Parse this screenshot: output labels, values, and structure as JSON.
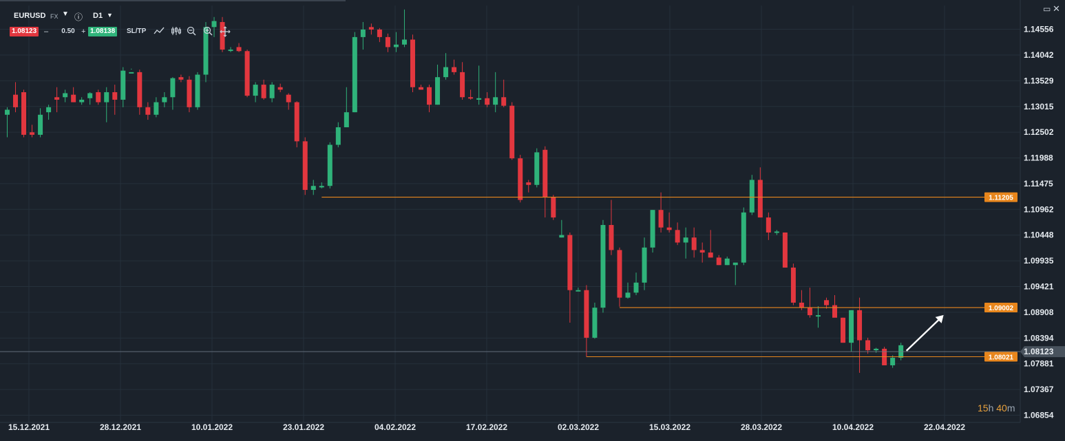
{
  "toolbar": {
    "symbol": "EURUSD",
    "market": "FX",
    "timeframe": "D1",
    "bid": "1.08123",
    "spread": "0.50",
    "ask": "1.08138",
    "sltp_label": "SL/TP",
    "minus": "–",
    "plus": "+"
  },
  "countdown": {
    "hours": "15",
    "h": "h",
    "minutes": "40",
    "m": "m"
  },
  "colors": {
    "bull": "#2fb37a",
    "bear": "#e2373f",
    "background": "#1b222b",
    "level": "#e8861c",
    "grid": "#25303b"
  },
  "chart_data": {
    "type": "candlestick",
    "symbol": "EURUSD",
    "timeframe": "D1",
    "yaxis_ticks": [
      "1.14556",
      "1.14042",
      "1.13529",
      "1.13015",
      "1.12502",
      "1.11988",
      "1.11475",
      "1.10962",
      "1.10448",
      "1.09935",
      "1.09421",
      "1.08908",
      "1.08394",
      "1.07881",
      "1.07367",
      "1.06854"
    ],
    "ylim": [
      1.0671,
      1.1503
    ],
    "xaxis_ticks": [
      "15.12.2021",
      "28.12.2021",
      "10.01.2022",
      "23.01.2022",
      "04.02.2022",
      "17.02.2022",
      "02.03.2022",
      "15.03.2022",
      "28.03.2022",
      "10.04.2022",
      "22.04.2022"
    ],
    "current_price": "1.08123",
    "levels": [
      {
        "label": "1.11205",
        "value": 1.11205,
        "start_index": 38
      },
      {
        "label": "1.09002",
        "value": 1.09002,
        "start_index": 74
      },
      {
        "label": "1.08021",
        "value": 1.08021,
        "start_index": 70
      }
    ],
    "annotations": [
      {
        "type": "arrow",
        "direction": "up-right",
        "from_index": 108
      }
    ],
    "candles": [
      [
        1.1285,
        1.13,
        1.124,
        1.1295
      ],
      [
        1.1325,
        1.135,
        1.129,
        1.13
      ],
      [
        1.133,
        1.1335,
        1.124,
        1.1245
      ],
      [
        1.125,
        1.1265,
        1.124,
        1.1245
      ],
      [
        1.1245,
        1.1298,
        1.124,
        1.1285
      ],
      [
        1.129,
        1.1305,
        1.1275,
        1.13
      ],
      [
        1.132,
        1.134,
        1.129,
        1.1315
      ],
      [
        1.132,
        1.1335,
        1.131,
        1.1328
      ],
      [
        1.1325,
        1.134,
        1.131,
        1.131
      ],
      [
        1.131,
        1.132,
        1.1305,
        1.1315
      ],
      [
        1.1318,
        1.133,
        1.1305,
        1.1328
      ],
      [
        1.133,
        1.1335,
        1.1305,
        1.131
      ],
      [
        1.131,
        1.134,
        1.127,
        1.133
      ],
      [
        1.133,
        1.1345,
        1.1285,
        1.1315
      ],
      [
        1.1315,
        1.138,
        1.13,
        1.1373
      ],
      [
        1.137,
        1.1377,
        1.1375,
        1.137
      ],
      [
        1.137,
        1.1375,
        1.1285,
        1.13
      ],
      [
        1.13,
        1.131,
        1.1275,
        1.1285
      ],
      [
        1.1285,
        1.132,
        1.128,
        1.131
      ],
      [
        1.131,
        1.133,
        1.13,
        1.132
      ],
      [
        1.132,
        1.136,
        1.1295,
        1.1358
      ],
      [
        1.136,
        1.1365,
        1.135,
        1.1355
      ],
      [
        1.1355,
        1.1362,
        1.129,
        1.13
      ],
      [
        1.13,
        1.137,
        1.1295,
        1.1365
      ],
      [
        1.1365,
        1.147,
        1.135,
        1.146
      ],
      [
        1.146,
        1.148,
        1.144,
        1.1472
      ],
      [
        1.147,
        1.148,
        1.141,
        1.1415
      ],
      [
        1.1415,
        1.142,
        1.141,
        1.1415
      ],
      [
        1.142,
        1.1428,
        1.141,
        1.1412
      ],
      [
        1.1412,
        1.1415,
        1.132,
        1.1323
      ],
      [
        1.1323,
        1.135,
        1.131,
        1.1345
      ],
      [
        1.1345,
        1.1355,
        1.1315,
        1.1318
      ],
      [
        1.1318,
        1.135,
        1.131,
        1.1345
      ],
      [
        1.134,
        1.1347,
        1.133,
        1.1335
      ],
      [
        1.1325,
        1.1328,
        1.1295,
        1.131
      ],
      [
        1.131,
        1.1312,
        1.122,
        1.1232
      ],
      [
        1.1232,
        1.124,
        1.1125,
        1.1135
      ],
      [
        1.1135,
        1.1155,
        1.1125,
        1.1143
      ],
      [
        1.114,
        1.115,
        1.1138,
        1.1143
      ],
      [
        1.1143,
        1.123,
        1.1138,
        1.1225
      ],
      [
        1.1225,
        1.127,
        1.122,
        1.126
      ],
      [
        1.126,
        1.134,
        1.126,
        1.129
      ],
      [
        1.129,
        1.145,
        1.129,
        1.144
      ],
      [
        1.144,
        1.147,
        1.1415,
        1.1455
      ],
      [
        1.146,
        1.1467,
        1.1445,
        1.1455
      ],
      [
        1.1455,
        1.1458,
        1.143,
        1.144
      ],
      [
        1.144,
        1.1447,
        1.141,
        1.142
      ],
      [
        1.142,
        1.145,
        1.141,
        1.1425
      ],
      [
        1.1425,
        1.1495,
        1.142,
        1.1435
      ],
      [
        1.1435,
        1.1445,
        1.133,
        1.134
      ],
      [
        1.134,
        1.1345,
        1.1335,
        1.1335
      ],
      [
        1.134,
        1.1345,
        1.129,
        1.1305
      ],
      [
        1.1305,
        1.1385,
        1.1305,
        1.136
      ],
      [
        1.136,
        1.1408,
        1.1355,
        1.138
      ],
      [
        1.138,
        1.1395,
        1.1365,
        1.137
      ],
      [
        1.137,
        1.139,
        1.1315,
        1.132
      ],
      [
        1.132,
        1.1335,
        1.1315,
        1.1318
      ],
      [
        1.1315,
        1.1383,
        1.1305,
        1.1318
      ],
      [
        1.1318,
        1.133,
        1.13,
        1.1305
      ],
      [
        1.1305,
        1.137,
        1.129,
        1.132
      ],
      [
        1.132,
        1.1355,
        1.13,
        1.1303
      ],
      [
        1.1303,
        1.131,
        1.1195,
        1.1198
      ],
      [
        1.1198,
        1.1205,
        1.111,
        1.1115
      ],
      [
        1.115,
        1.1155,
        1.113,
        1.1145
      ],
      [
        1.1145,
        1.1218,
        1.114,
        1.121
      ],
      [
        1.1215,
        1.1222,
        1.108,
        1.112
      ],
      [
        1.112,
        1.1125,
        1.1075,
        1.108
      ],
      [
        1.104,
        1.1075,
        1.104,
        1.1045
      ],
      [
        1.1045,
        1.105,
        1.087,
        1.0935
      ],
      [
        1.0935,
        1.094,
        1.0935,
        1.0935
      ],
      [
        1.0935,
        1.0945,
        1.0802,
        1.084
      ],
      [
        1.084,
        1.091,
        1.0838,
        1.09
      ],
      [
        1.09,
        1.1075,
        1.089,
        1.1065
      ],
      [
        1.1065,
        1.1115,
        1.1005,
        1.1015
      ],
      [
        1.1015,
        1.102,
        1.0902,
        1.092
      ],
      [
        1.092,
        1.095,
        1.0918,
        1.093
      ],
      [
        1.093,
        1.097,
        1.0925,
        1.095
      ],
      [
        1.095,
        1.104,
        1.0935,
        1.102
      ],
      [
        1.102,
        1.1095,
        1.101,
        1.1095
      ],
      [
        1.1095,
        1.113,
        1.105,
        1.106
      ],
      [
        1.106,
        1.109,
        1.105,
        1.1055
      ],
      [
        1.1055,
        1.107,
        1.1025,
        1.103
      ],
      [
        1.103,
        1.106,
        1.0998,
        1.104
      ],
      [
        1.104,
        1.106,
        1.1,
        1.1015
      ],
      [
        1.1015,
        1.103,
        1.099,
        1.101
      ],
      [
        1.101,
        1.1055,
        1.1,
        1.1
      ],
      [
        1.1,
        1.1005,
        1.0985,
        1.0985
      ],
      [
        1.0985,
        1.1002,
        1.0985,
        1.0998
      ],
      [
        1.0985,
        1.0985,
        1.0945,
        1.099
      ],
      [
        1.099,
        1.11,
        1.0985,
        1.109
      ],
      [
        1.109,
        1.1165,
        1.1085,
        1.1155
      ],
      [
        1.1155,
        1.118,
        1.108,
        1.108
      ],
      [
        1.108,
        1.109,
        1.1035,
        1.105
      ],
      [
        1.105,
        1.1055,
        1.1045,
        1.1052
      ],
      [
        1.105,
        1.105,
        1.098,
        1.098
      ],
      [
        1.098,
        1.0988,
        1.0905,
        1.091
      ],
      [
        1.091,
        1.0935,
        1.0895,
        1.09
      ],
      [
        1.09,
        1.094,
        1.088,
        1.0885
      ],
      [
        1.0885,
        1.0903,
        1.086,
        1.0885
      ],
      [
        1.0915,
        1.092,
        1.0898,
        1.0905
      ],
      [
        1.0905,
        1.0925,
        1.0885,
        1.088
      ],
      [
        1.088,
        1.088,
        1.083,
        1.083
      ],
      [
        1.083,
        1.0895,
        1.0812,
        1.0895
      ],
      [
        1.0895,
        1.092,
        1.077,
        1.0835
      ],
      [
        1.0835,
        1.084,
        1.0808,
        1.0815
      ],
      [
        1.0815,
        1.082,
        1.081,
        1.0818
      ],
      [
        1.0818,
        1.0822,
        1.0785,
        1.0785
      ],
      [
        1.0785,
        1.0805,
        1.078,
        1.08
      ],
      [
        1.08,
        1.083,
        1.0795,
        1.0825
      ]
    ]
  }
}
